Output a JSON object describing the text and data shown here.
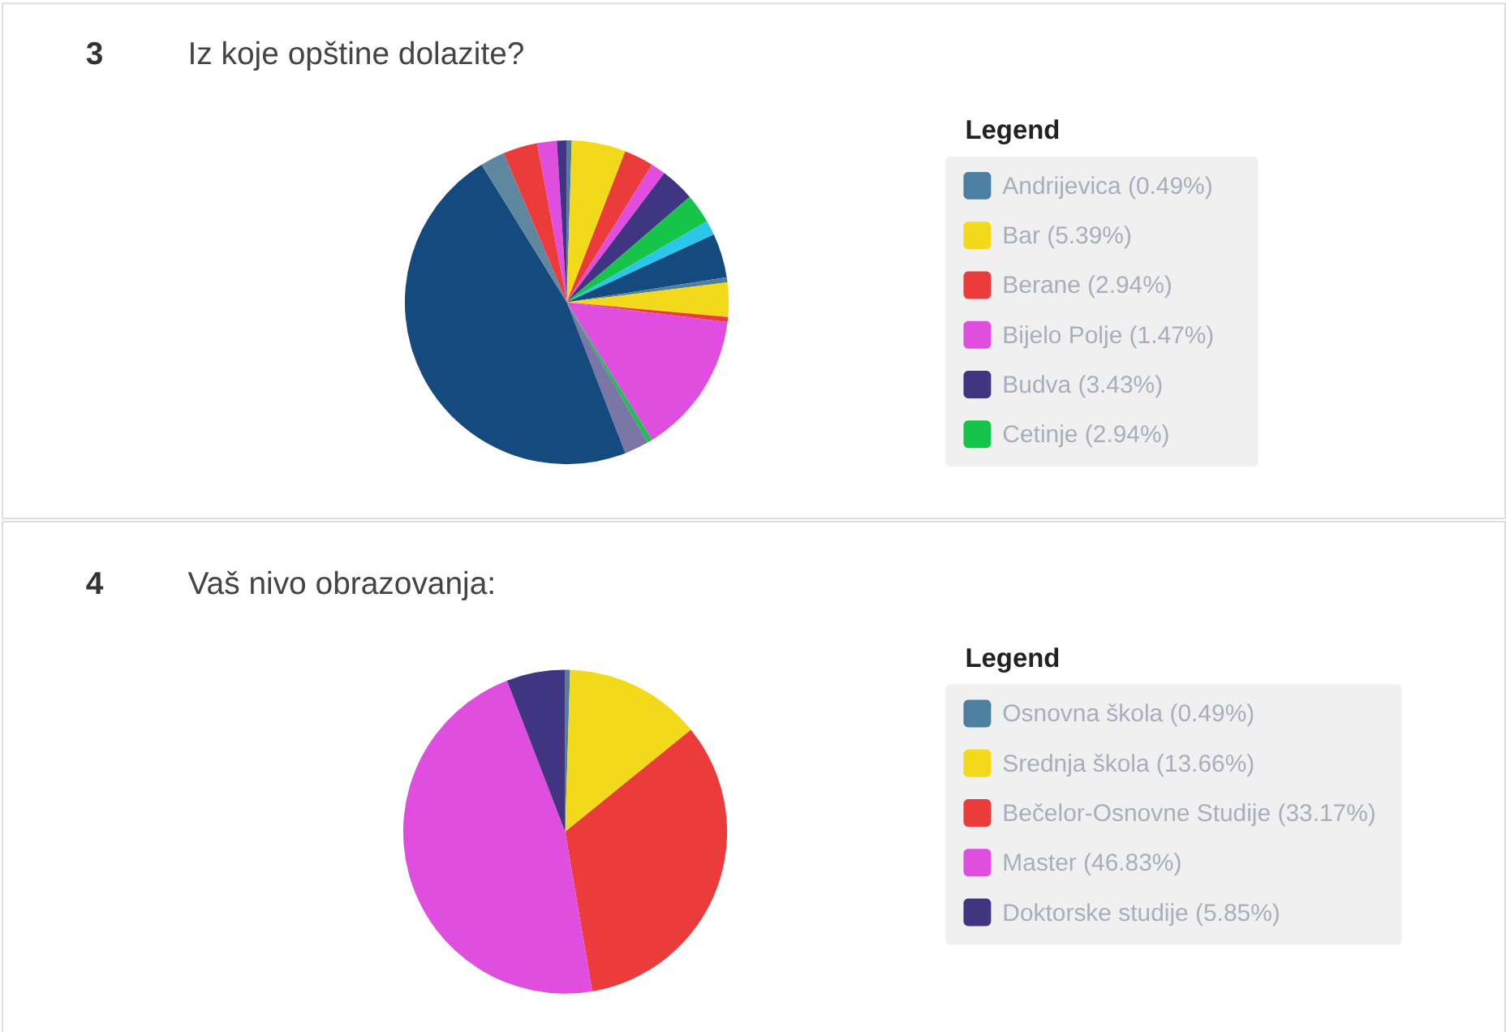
{
  "chart_data": [
    {
      "type": "pie",
      "title": "Iz koje opštine dolazite?",
      "annotations": [
        "3"
      ],
      "legend_title": "Legend",
      "legend": "right",
      "categories": [
        "Andrijevica (0.49%)",
        "Bar (5.39%)",
        "Berane (2.94%)",
        "Bijelo Polje (1.47%)",
        "Budva (3.43%)",
        "Cetinje (2.94%)",
        null,
        null,
        null,
        null,
        null,
        null,
        null,
        null,
        null,
        null,
        null,
        null,
        null
      ],
      "values": [
        0.49,
        5.39,
        2.94,
        1.47,
        3.43,
        2.94,
        1.47,
        4.41,
        0.49,
        3.43,
        0.49,
        14.22,
        0.49,
        2.45,
        47.07,
        2.45,
        3.43,
        1.96,
        0.98
      ],
      "colors": [
        "#4d7fa0",
        "#f2d91c",
        "#ec3b3b",
        "#e04ee0",
        "#3f3580",
        "#16c44a",
        "#2bc7ea",
        "#154a7e",
        "#4d7fa0",
        "#f2d91c",
        "#ec3b3b",
        "#e04ee0",
        "#16c44a",
        "#7a76a6",
        "#154a7e",
        "#5f88a0",
        "#ec3b3b",
        "#e04ee0",
        "#3f3580"
      ]
    },
    {
      "type": "pie",
      "title": "Vaš nivo obrazovanja:",
      "annotations": [
        "4"
      ],
      "legend_title": "Legend",
      "legend": "right",
      "categories": [
        "Osnovna škola (0.49%)",
        "Srednja škola (13.66%)",
        "Bečelor-Osnovne Studije (33.17%)",
        "Master (46.83%)",
        "Doktorske studije (5.85%)"
      ],
      "values": [
        0.49,
        13.66,
        33.17,
        46.83,
        5.85
      ],
      "colors": [
        "#4d7fa0",
        "#f2d91c",
        "#ec3b3b",
        "#e04ee0",
        "#3f3580"
      ]
    }
  ]
}
